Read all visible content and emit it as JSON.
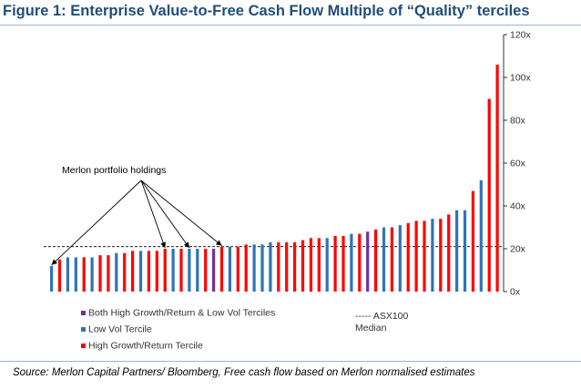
{
  "title": "Figure 1: Enterprise Value-to-Free Cash Flow Multiple of “Quality” terciles",
  "source": "Source: Merlon Capital Partners/ Bloomberg, Free cash flow based on Merlon normalised estimates",
  "chart_data": {
    "type": "bar",
    "ylim": [
      0,
      120
    ],
    "y_ticks": [
      "0x",
      "20x",
      "40x",
      "60x",
      "80x",
      "100x",
      "120x"
    ],
    "y_tick_values": [
      0,
      20,
      40,
      60,
      80,
      100,
      120
    ],
    "y_axis_position": "right",
    "grid": false,
    "median_value": 21,
    "median_label": "----- ASX100 Median",
    "median_label_lines": [
      "-----  ASX100",
      "Median"
    ],
    "annotation": "Merlon portfolio holdings",
    "highlight_indices": [
      0,
      14,
      17,
      21
    ],
    "colors": {
      "both": "#7030a0",
      "low_vol": "#2e75b6",
      "growth": "#ff0000"
    },
    "legend": [
      {
        "label": "Both High Growth/Return & Low Vol Terciles",
        "color": "#7030a0"
      },
      {
        "label": "Low Vol Tercile",
        "color": "#2e75b6"
      },
      {
        "label": "High Growth/Return Tercile",
        "color": "#ff0000"
      }
    ],
    "values": [
      12,
      15,
      16,
      16,
      16,
      16,
      17,
      17,
      18,
      18,
      19,
      19,
      19,
      19,
      20,
      20,
      20,
      20,
      20,
      20,
      20,
      21,
      21,
      21,
      22,
      22,
      22,
      23,
      23,
      23,
      23,
      24,
      25,
      25,
      25,
      26,
      26,
      27,
      27,
      28,
      29,
      30,
      30,
      31,
      32,
      33,
      33,
      34,
      34,
      36,
      38,
      38,
      47,
      52,
      90,
      106
    ],
    "groups": [
      "low_vol",
      "growth",
      "low_vol",
      "low_vol",
      "growth",
      "low_vol",
      "growth",
      "growth",
      "low_vol",
      "growth",
      "growth",
      "low_vol",
      "growth",
      "growth",
      "growth",
      "low_vol",
      "growth",
      "low_vol",
      "low_vol",
      "growth",
      "both",
      "growth",
      "low_vol",
      "growth",
      "growth",
      "low_vol",
      "low_vol",
      "low_vol",
      "growth",
      "growth",
      "growth",
      "growth",
      "growth",
      "growth",
      "low_vol",
      "growth",
      "growth",
      "low_vol",
      "growth",
      "both",
      "growth",
      "low_vol",
      "growth",
      "low_vol",
      "growth",
      "growth",
      "growth",
      "low_vol",
      "growth",
      "growth",
      "low_vol",
      "low_vol",
      "growth",
      "low_vol",
      "growth",
      "growth"
    ]
  }
}
